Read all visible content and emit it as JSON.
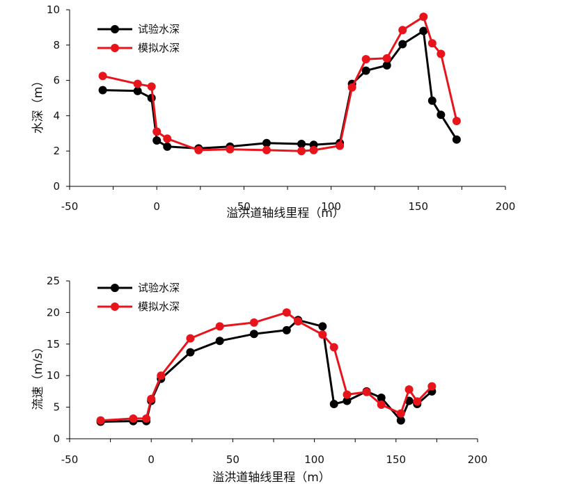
{
  "colors": {
    "exp": "#000000",
    "sim": "#e8141c",
    "axis": "#000000"
  },
  "chart_data": [
    {
      "type": "line",
      "title": "",
      "xlabel": "溢洪道轴线里程（m）",
      "ylabel": "水深（m）",
      "xlim": [
        -50,
        200
      ],
      "ylim": [
        0,
        10
      ],
      "xticks": [
        "-50",
        "0",
        "50",
        "100",
        "150",
        "200"
      ],
      "yticks": [
        "0",
        "2",
        "4",
        "6",
        "8",
        "10"
      ],
      "legend": "top-left",
      "series": [
        {
          "name": "试验水深",
          "x": [
            -31,
            -11,
            -3,
            0,
            6,
            24,
            42,
            63,
            83,
            90,
            105,
            112,
            120,
            132,
            141,
            153,
            158,
            163,
            172
          ],
          "y": [
            5.45,
            5.4,
            5.0,
            2.6,
            2.25,
            2.15,
            2.25,
            2.45,
            2.4,
            2.35,
            2.45,
            5.8,
            6.55,
            6.85,
            8.05,
            8.8,
            4.85,
            4.05,
            2.65
          ]
        },
        {
          "name": "模拟水深",
          "x": [
            -31,
            -11,
            -3,
            0,
            6,
            24,
            42,
            63,
            83,
            90,
            105,
            112,
            120,
            132,
            141,
            153,
            158,
            163,
            172
          ],
          "y": [
            6.25,
            5.8,
            5.65,
            3.1,
            2.7,
            2.05,
            2.1,
            2.05,
            2.0,
            2.05,
            2.3,
            5.6,
            7.2,
            7.25,
            8.85,
            9.6,
            8.1,
            7.5,
            3.7
          ]
        }
      ]
    },
    {
      "type": "line",
      "title": "",
      "xlabel": "溢洪道轴线里程（m）",
      "ylabel": "流速（m/s）",
      "xlim": [
        -50,
        200
      ],
      "ylim": [
        0,
        25
      ],
      "xticks": [
        "-50",
        "0",
        "50",
        "100",
        "150",
        "200"
      ],
      "yticks": [
        "0",
        "5",
        "10",
        "15",
        "20",
        "25"
      ],
      "legend": "top-left",
      "series": [
        {
          "name": "试验水深",
          "x": [
            -31,
            -11,
            -3,
            0,
            6,
            24,
            42,
            63,
            83,
            90,
            105,
            112,
            120,
            132,
            141,
            153,
            158,
            163,
            172
          ],
          "y": [
            2.7,
            2.8,
            2.8,
            6.0,
            9.5,
            13.7,
            15.5,
            16.6,
            17.2,
            18.8,
            17.8,
            5.5,
            6.0,
            7.5,
            6.5,
            2.9,
            6.0,
            5.5,
            7.5
          ]
        },
        {
          "name": "模拟水深",
          "x": [
            -31,
            -11,
            -3,
            0,
            6,
            24,
            42,
            63,
            83,
            90,
            105,
            112,
            120,
            132,
            141,
            153,
            158,
            163,
            172
          ],
          "y": [
            2.9,
            3.2,
            3.2,
            6.3,
            10.0,
            15.9,
            17.8,
            18.4,
            20.0,
            18.6,
            16.5,
            14.5,
            7.0,
            7.4,
            5.4,
            4.0,
            7.8,
            5.9,
            8.3
          ]
        }
      ]
    }
  ]
}
